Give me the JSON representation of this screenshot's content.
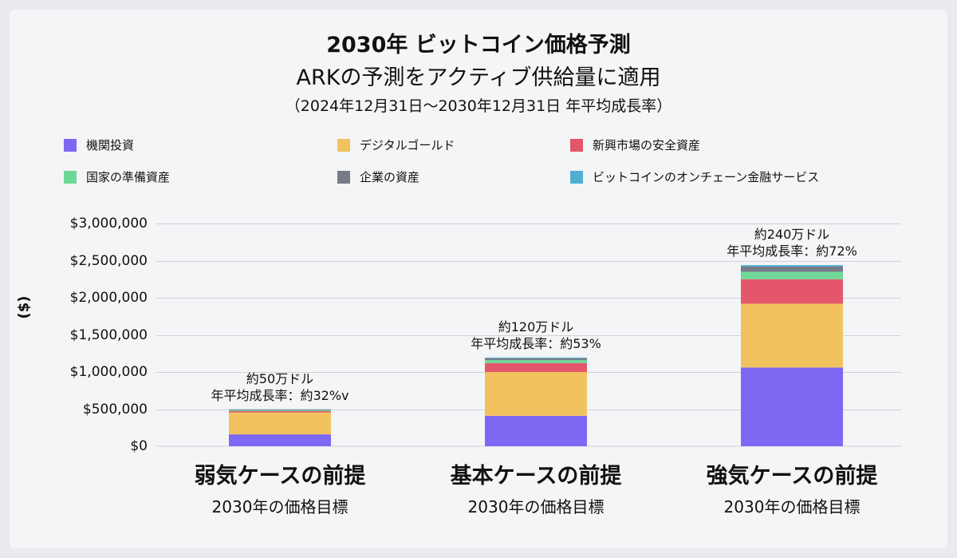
{
  "title": "2030年  ビットコイン価格予測",
  "subtitle": "ARKの予測をアクティブ供給量に適用",
  "subtitle2": "（2024年12月31日～2030年12月31日  年平均成長率）",
  "y_axis_title": "($)",
  "colors": {
    "機関投資": "#7c68f2",
    "デジタルゴールド": "#f2c25f",
    "新興市場の安全資産": "#e4566b",
    "国家の準備資産": "#6fd897",
    "企業の資産": "#767b88",
    "ビットコインのオンチェーン金融サービス": "#4faed1"
  },
  "chart_data": {
    "type": "bar",
    "stacked": true,
    "categories": [
      "弱気ケースの前提",
      "基本ケースの前提",
      "強気ケースの前提"
    ],
    "category_sublabels": [
      "2030年の価格目標",
      "2030年の価格目標",
      "2030年の価格目標"
    ],
    "annotations": [
      [
        "約50万ドル",
        "年平均成長率：約32%v"
      ],
      [
        "約120万ドル",
        "年平均成長率：約53%"
      ],
      [
        "約240万ドル",
        "年平均成長率：約72%"
      ]
    ],
    "series": [
      {
        "name": "機関投資",
        "values": [
          160000,
          410000,
          1060000
        ]
      },
      {
        "name": "デジタルゴールド",
        "values": [
          295000,
          590000,
          860000
        ]
      },
      {
        "name": "新興市場の安全資産",
        "values": [
          18000,
          120000,
          330000
        ]
      },
      {
        "name": "国家の準備資産",
        "values": [
          12000,
          40000,
          100000
        ]
      },
      {
        "name": "企業の資産",
        "values": [
          8000,
          25000,
          70000
        ]
      },
      {
        "name": "ビットコインのオンチェーン金融サービス",
        "values": [
          5000,
          10000,
          20000
        ]
      }
    ],
    "ylim": [
      0,
      3000000
    ],
    "yticks": [
      0,
      500000,
      1000000,
      1500000,
      2000000,
      2500000,
      3000000
    ],
    "ytick_labels": [
      "$0",
      "$500,000",
      "$1,000,000",
      "$1,500,000",
      "$2,000,000",
      "$2,500,000",
      "$3,000,000"
    ],
    "ylabel": "($)",
    "legend_position": "top",
    "grid": true
  }
}
